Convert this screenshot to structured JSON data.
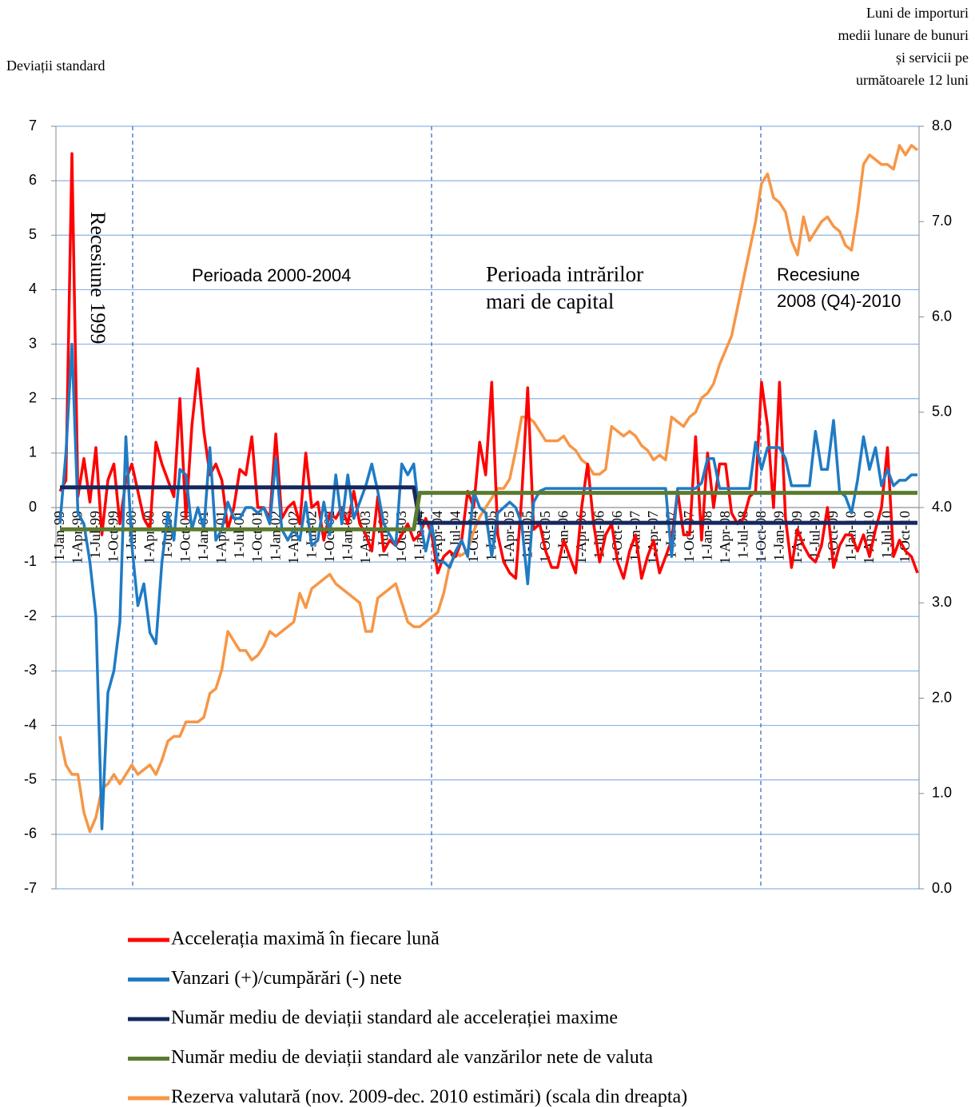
{
  "chart_data": {
    "type": "line",
    "ylabel": "Deviații standard",
    "y2label": [
      "Luni de importuri",
      "medii lunare de bunuri",
      "și servicii pe",
      "următoarele 12 luni"
    ],
    "annotations": [
      [
        "Recesiune 1999"
      ],
      [
        "Perioada 2000-2004"
      ],
      [
        "Perioada intrărilor",
        "mari de capital"
      ],
      [
        "Recesiune",
        "2008 (Q4)-2010"
      ]
    ],
    "categories": [
      "1-Jan-99",
      null,
      null,
      "1-Apr-99",
      null,
      null,
      "1-Jul-99",
      null,
      null,
      "1-Oct-99",
      null,
      null,
      "1-Jan-00",
      null,
      null,
      "1-Apr-00",
      null,
      null,
      "1-Jul-00",
      null,
      null,
      "1-Oct-00",
      null,
      null,
      "1-Jan-01",
      null,
      null,
      "1-Apr-01",
      null,
      null,
      "1-Jul-01",
      null,
      null,
      "1-Oct-01",
      null,
      null,
      "1-Jan-02",
      null,
      null,
      "1-Apr-02",
      null,
      null,
      "1-Jul-02",
      null,
      null,
      "1-Oct-02",
      null,
      null,
      "1-Jan-03",
      null,
      null,
      "1-Apr-03",
      null,
      null,
      "1-Jul-03",
      null,
      null,
      "1-Oct-03",
      null,
      null,
      "1-Jan-04",
      null,
      null,
      "1-Apr-04",
      null,
      null,
      "1-Jul-04",
      null,
      null,
      "1-Oct-04",
      null,
      null,
      "1-Jan-05",
      null,
      null,
      "1-Apr-05",
      null,
      null,
      "1-Jul-05",
      null,
      null,
      "1-Oct-05",
      null,
      null,
      "1-Jan-06",
      null,
      null,
      "1-Apr-06",
      null,
      null,
      "1-Jul-06",
      null,
      null,
      "1-Oct-06",
      null,
      null,
      "1-Jan-07",
      null,
      null,
      "1-Apr-07",
      null,
      null,
      "1-Jul-07",
      null,
      null,
      "1-Oct-07",
      null,
      null,
      "1-Jan-08",
      null,
      null,
      "1-Apr-08",
      null,
      null,
      "1-Jul-08",
      null,
      null,
      "1-Oct-08",
      null,
      null,
      "1-Jan-09",
      null,
      null,
      "1-Apr-09",
      null,
      null,
      "1-Jul-09",
      null,
      null,
      "1-Oct-09",
      null,
      null,
      "1-Jan-10",
      null,
      null,
      "1-Apr-10",
      null,
      null,
      "1-Jul-10",
      null,
      null,
      "1-Oct-10",
      null,
      null
    ],
    "series": [
      {
        "name": "Accelerația maximă în fiecare lună",
        "color": "#ff0000",
        "values": [
          0.3,
          0.5,
          6.5,
          0.2,
          0.9,
          0.1,
          1.1,
          -0.5,
          0.5,
          0.8,
          -0.3,
          0.5,
          0.8,
          0.3,
          -0.2,
          -0.4,
          1.2,
          0.8,
          0.5,
          0.2,
          2.0,
          -0.2,
          1.5,
          2.55,
          1.4,
          0.6,
          0.8,
          0.5,
          -0.4,
          0.0,
          0.7,
          0.6,
          1.3,
          0.0,
          0.0,
          -0.2,
          1.35,
          -0.2,
          0.0,
          0.1,
          -0.3,
          1.0,
          0.0,
          0.1,
          -0.6,
          -0.1,
          -0.2,
          0.0,
          -0.3,
          0.3,
          -0.3,
          -0.5,
          -0.8,
          0.2,
          -0.8,
          -0.6,
          -0.7,
          -0.5,
          -0.3,
          -0.6,
          -0.5,
          -0.2,
          -0.5,
          -1.2,
          -0.9,
          -0.8,
          -0.9,
          -0.6,
          0.3,
          0.0,
          1.2,
          0.6,
          2.3,
          -0.5,
          -1.0,
          -1.2,
          -1.3,
          0.2,
          2.2,
          -0.4,
          -0.3,
          -0.8,
          -1.1,
          -1.1,
          -0.6,
          -0.9,
          -1.2,
          0.0,
          0.8,
          -0.3,
          -1.0,
          -0.5,
          -0.3,
          -1.0,
          -1.3,
          -0.8,
          -0.5,
          -1.3,
          -0.9,
          -0.6,
          -1.2,
          -0.9,
          -0.6,
          0.3,
          -0.5,
          -0.5,
          1.3,
          -0.6,
          1.0,
          0.0,
          0.8,
          0.8,
          -0.1,
          -0.3,
          -0.2,
          0.2,
          0.3,
          2.3,
          1.5,
          0.0,
          2.3,
          -0.2,
          -1.1,
          -0.4,
          -0.7,
          -0.9,
          -1.0,
          -0.7,
          0.0,
          -1.1,
          -0.7,
          -0.5,
          -0.5,
          -0.8,
          -0.5,
          -0.9,
          -0.4,
          0.0,
          1.1,
          -0.9,
          -0.6,
          -0.8,
          -0.9,
          -1.2
        ]
      },
      {
        "name": "Vanzari (+)/cumpărări  (-) nete",
        "color": "#1f7bc4",
        "values": [
          -0.3,
          1.0,
          3.0,
          -0.1,
          -0.3,
          -1.0,
          -2.0,
          -5.9,
          -3.4,
          -3.0,
          -2.1,
          1.3,
          -0.7,
          -1.8,
          -1.4,
          -2.3,
          -2.5,
          -1.0,
          -0.1,
          -0.6,
          0.7,
          0.6,
          -0.4,
          0.0,
          -0.4,
          1.1,
          -0.6,
          -0.4,
          0.1,
          -0.2,
          -0.2,
          0.0,
          0.0,
          -0.1,
          0.0,
          -0.3,
          0.9,
          -0.4,
          -0.6,
          -0.4,
          -0.6,
          0.1,
          -0.7,
          -0.6,
          0.1,
          -0.5,
          0.6,
          -0.3,
          0.6,
          -0.2,
          0.1,
          0.4,
          0.8,
          0.3,
          -0.3,
          -0.5,
          -0.7,
          0.8,
          0.6,
          0.8,
          -0.2,
          -0.8,
          -0.3,
          -1.0,
          -1.0,
          -1.1,
          -0.8,
          -0.6,
          -0.9,
          0.3,
          0.0,
          -0.1,
          -0.9,
          -0.1,
          0.0,
          0.1,
          0.0,
          -0.3,
          -1.4,
          0.1,
          0.3,
          0.35,
          0.35,
          0.35,
          0.35,
          0.35,
          0.35,
          0.35,
          0.35,
          0.35,
          0.35,
          0.35,
          0.35,
          0.35,
          0.35,
          0.35,
          0.35,
          0.35,
          0.35,
          0.35,
          0.35,
          0.35,
          -0.9,
          0.35,
          0.35,
          0.35,
          0.35,
          0.45,
          0.9,
          0.9,
          0.35,
          0.35,
          0.35,
          0.35,
          0.35,
          0.35,
          1.2,
          0.7,
          1.1,
          1.1,
          1.1,
          0.9,
          0.4,
          0.4,
          0.4,
          0.4,
          1.4,
          0.7,
          0.7,
          1.6,
          0.3,
          0.2,
          -0.1,
          0.5,
          1.3,
          0.7,
          1.1,
          0.4,
          0.7,
          0.4,
          0.5,
          0.5,
          0.6,
          0.6
        ]
      },
      {
        "name": "Număr mediu de deviații standard ale accelerației  maxime",
        "color": "#14285e",
        "values": [
          0.37,
          0.37,
          0.37,
          0.37,
          0.37,
          0.37,
          0.37,
          0.37,
          0.37,
          0.37,
          0.37,
          0.37,
          0.37,
          0.37,
          0.37,
          0.37,
          0.37,
          0.37,
          0.37,
          0.37,
          0.37,
          0.37,
          0.37,
          0.37,
          0.37,
          0.37,
          0.37,
          0.37,
          0.37,
          0.37,
          0.37,
          0.37,
          0.37,
          0.37,
          0.37,
          0.37,
          0.37,
          0.37,
          0.37,
          0.37,
          0.37,
          0.37,
          0.37,
          0.37,
          0.37,
          0.37,
          0.37,
          0.37,
          0.37,
          0.37,
          0.37,
          0.37,
          0.37,
          0.37,
          0.37,
          0.37,
          0.37,
          0.37,
          0.37,
          0.37,
          -0.28,
          -0.28,
          -0.28,
          -0.28,
          -0.28,
          -0.28,
          -0.28,
          -0.28,
          -0.28,
          -0.28,
          -0.28,
          -0.28,
          -0.28,
          -0.28,
          -0.28,
          -0.28,
          -0.28,
          -0.28,
          -0.28,
          -0.28,
          -0.28,
          -0.28,
          -0.28,
          -0.28,
          -0.28,
          -0.28,
          -0.28,
          -0.28,
          -0.28,
          -0.28,
          -0.28,
          -0.28,
          -0.28,
          -0.28,
          -0.28,
          -0.28,
          -0.28,
          -0.28,
          -0.28,
          -0.28,
          -0.28,
          -0.28,
          -0.28,
          -0.28,
          -0.28,
          -0.28,
          -0.28,
          -0.28,
          -0.28,
          -0.28,
          -0.28,
          -0.28,
          -0.28,
          -0.28,
          -0.28,
          -0.28,
          -0.28,
          -0.28,
          -0.28,
          -0.28,
          -0.28,
          -0.28,
          -0.28,
          -0.28,
          -0.28,
          -0.28,
          -0.28,
          -0.28,
          -0.28,
          -0.28,
          -0.28,
          -0.28,
          -0.28,
          -0.28,
          -0.28,
          -0.28,
          -0.28,
          -0.28,
          -0.28,
          -0.28,
          -0.28,
          -0.28,
          -0.28,
          -0.28
        ]
      },
      {
        "name": "Număr mediu de deviații standard ale vanzărilor nete de valuta",
        "color": "#5b7b30",
        "values": [
          -0.4,
          -0.4,
          -0.4,
          -0.4,
          -0.4,
          -0.4,
          -0.4,
          -0.4,
          -0.4,
          -0.4,
          -0.4,
          -0.4,
          -0.4,
          -0.4,
          -0.4,
          -0.4,
          -0.4,
          -0.4,
          -0.4,
          -0.4,
          -0.4,
          -0.4,
          -0.4,
          -0.4,
          -0.4,
          -0.4,
          -0.4,
          -0.4,
          -0.4,
          -0.4,
          -0.4,
          -0.4,
          -0.4,
          -0.4,
          -0.4,
          -0.4,
          -0.4,
          -0.4,
          -0.4,
          -0.4,
          -0.4,
          -0.4,
          -0.4,
          -0.4,
          -0.4,
          -0.4,
          -0.4,
          -0.4,
          -0.4,
          -0.4,
          -0.4,
          -0.4,
          -0.4,
          -0.4,
          -0.4,
          -0.4,
          -0.4,
          -0.4,
          -0.4,
          -0.4,
          0.27,
          0.27,
          0.27,
          0.27,
          0.27,
          0.27,
          0.27,
          0.27,
          0.27,
          0.27,
          0.27,
          0.27,
          0.27,
          0.27,
          0.27,
          0.27,
          0.27,
          0.27,
          0.27,
          0.27,
          0.27,
          0.27,
          0.27,
          0.27,
          0.27,
          0.27,
          0.27,
          0.27,
          0.27,
          0.27,
          0.27,
          0.27,
          0.27,
          0.27,
          0.27,
          0.27,
          0.27,
          0.27,
          0.27,
          0.27,
          0.27,
          0.27,
          0.27,
          0.27,
          0.27,
          0.27,
          0.27,
          0.27,
          0.27,
          0.27,
          0.27,
          0.27,
          0.27,
          0.27,
          0.27,
          0.27,
          0.27,
          0.27,
          0.27,
          0.27,
          0.27,
          0.27,
          0.27,
          0.27,
          0.27,
          0.27,
          0.27,
          0.27,
          0.27,
          0.27,
          0.27,
          0.27,
          0.27,
          0.27,
          0.27,
          0.27,
          0.27,
          0.27,
          0.27,
          0.27,
          0.27,
          0.27,
          0.27,
          0.27
        ]
      },
      {
        "name": "Rezerva valutară (nov. 2009-dec. 2010 estimări) (scala din dreapta)",
        "color": "#f79646",
        "axis": "y2",
        "values": [
          1.6,
          1.3,
          1.2,
          1.2,
          0.8,
          0.6,
          0.75,
          1.05,
          1.1,
          1.2,
          1.1,
          1.2,
          1.3,
          1.2,
          1.25,
          1.3,
          1.2,
          1.35,
          1.55,
          1.6,
          1.6,
          1.75,
          1.75,
          1.75,
          1.8,
          2.05,
          2.1,
          2.3,
          2.7,
          2.6,
          2.5,
          2.5,
          2.4,
          2.45,
          2.55,
          2.7,
          2.65,
          2.7,
          2.75,
          2.8,
          3.1,
          2.95,
          3.15,
          3.2,
          3.25,
          3.3,
          3.2,
          3.15,
          3.1,
          3.05,
          3.0,
          2.7,
          2.7,
          3.05,
          3.1,
          3.15,
          3.2,
          3.0,
          2.8,
          2.75,
          2.75,
          2.8,
          2.85,
          2.9,
          3.1,
          3.4,
          3.5,
          3.5,
          3.55,
          3.75,
          3.9,
          4.0,
          4.1,
          4.2,
          4.2,
          4.3,
          4.6,
          4.95,
          4.95,
          4.9,
          4.8,
          4.7,
          4.7,
          4.7,
          4.75,
          4.65,
          4.6,
          4.5,
          4.45,
          4.35,
          4.35,
          4.4,
          4.85,
          4.8,
          4.75,
          4.8,
          4.75,
          4.65,
          4.6,
          4.5,
          4.55,
          4.5,
          4.95,
          4.9,
          4.85,
          4.95,
          5.0,
          5.15,
          5.2,
          5.3,
          5.5,
          5.65,
          5.8,
          6.1,
          6.4,
          6.7,
          7.0,
          7.4,
          7.5,
          7.25,
          7.2,
          7.1,
          6.8,
          6.65,
          7.05,
          6.8,
          6.9,
          7.0,
          7.05,
          6.95,
          6.9,
          6.75,
          6.7,
          7.1,
          7.6,
          7.7,
          7.65,
          7.6,
          7.6,
          7.55,
          7.8,
          7.7,
          7.8,
          7.75
        ]
      }
    ],
    "ylim": [
      -7,
      7
    ],
    "yticks": [
      -7,
      -6,
      -5,
      -4,
      -3,
      -2,
      -1,
      0,
      1,
      2,
      3,
      4,
      5,
      6,
      7
    ],
    "y2lim": [
      0,
      8
    ],
    "y2ticks": [
      {
        "value": 0,
        "label": "0.0"
      },
      {
        "value": 1,
        "label": "1.0"
      },
      {
        "value": 2,
        "label": "2.0"
      },
      {
        "value": 3,
        "label": "3.0"
      },
      {
        "value": 4,
        "label": "4.0"
      },
      {
        "value": 5,
        "label": "5.0"
      },
      {
        "value": 6,
        "label": "6.0"
      },
      {
        "value": 7,
        "label": "7.0"
      },
      {
        "value": 8,
        "label": "8.0"
      }
    ],
    "grid": true
  }
}
